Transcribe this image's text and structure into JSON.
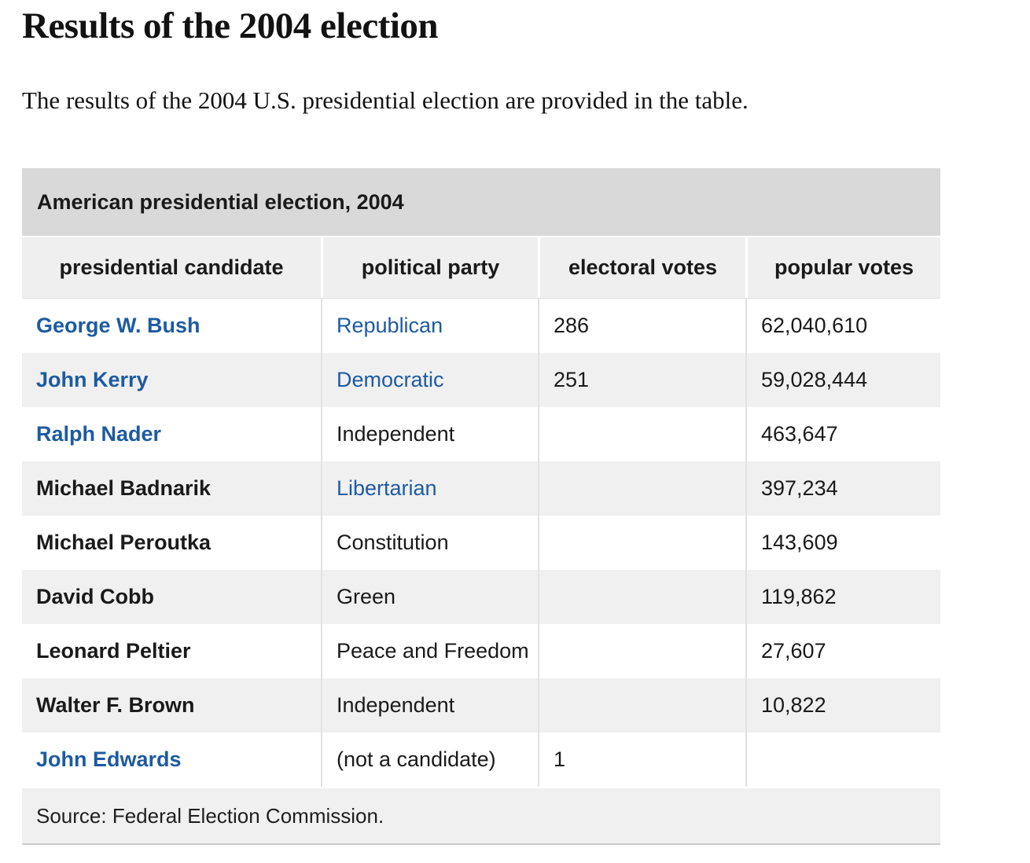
{
  "page": {
    "title": "Results of the 2004 election",
    "intro": "The results of the 2004 U.S. presidential election are provided in the table."
  },
  "table": {
    "caption": "American presidential election, 2004",
    "columns": [
      "presidential candidate",
      "political party",
      "electoral votes",
      "popular votes"
    ],
    "rows": [
      {
        "candidate": "George W. Bush",
        "candidate_link": true,
        "party": "Republican",
        "party_link": true,
        "electoral": "286",
        "popular": "62,040,610"
      },
      {
        "candidate": "John Kerry",
        "candidate_link": true,
        "party": "Democratic",
        "party_link": true,
        "electoral": "251",
        "popular": "59,028,444"
      },
      {
        "candidate": "Ralph Nader",
        "candidate_link": true,
        "party": "Independent",
        "party_link": false,
        "electoral": "",
        "popular": "463,647"
      },
      {
        "candidate": "Michael Badnarik",
        "candidate_link": false,
        "party": "Libertarian",
        "party_link": true,
        "electoral": "",
        "popular": "397,234"
      },
      {
        "candidate": "Michael Peroutka",
        "candidate_link": false,
        "party": "Constitution",
        "party_link": false,
        "electoral": "",
        "popular": "143,609"
      },
      {
        "candidate": "David Cobb",
        "candidate_link": false,
        "party": "Green",
        "party_link": false,
        "electoral": "",
        "popular": "119,862"
      },
      {
        "candidate": "Leonard Peltier",
        "candidate_link": false,
        "party": "Peace and Freedom",
        "party_link": false,
        "electoral": "",
        "popular": "27,607"
      },
      {
        "candidate": "Walter F. Brown",
        "candidate_link": false,
        "party": "Independent",
        "party_link": false,
        "electoral": "",
        "popular": "10,822"
      },
      {
        "candidate": "John Edwards",
        "candidate_link": true,
        "party": "(not a candidate)",
        "party_link": false,
        "electoral": "1",
        "popular": ""
      }
    ],
    "source": "Source: Federal Election Commission."
  },
  "colors": {
    "link_blue": "#1d5ba1",
    "caption_bg": "#d9d9d9",
    "header_bg": "#efefef",
    "stripe_bg": "#f0f0f0",
    "footer_bg": "#f0f0f0"
  }
}
